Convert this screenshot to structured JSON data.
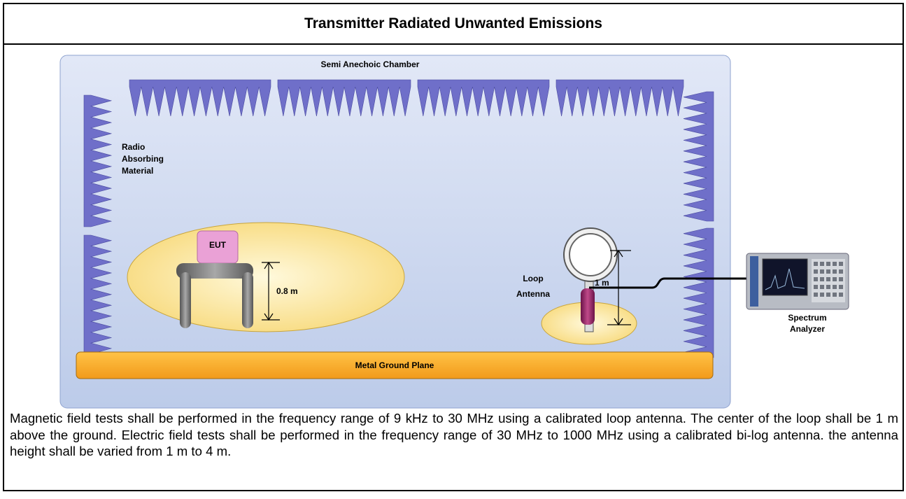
{
  "title": "Transmitter Radiated Unwanted Emissions",
  "diagram": {
    "chamber_label": "Semi Anechoic Chamber",
    "absorber_label": [
      "Radio",
      "Absorbing",
      "Material"
    ],
    "eut_label": "EUT",
    "eut_height": "0.8 m",
    "antenna_label": [
      "Loop",
      "Antenna"
    ],
    "antenna_height": "1 m",
    "analyzer_label": [
      "Spectrum",
      "Analyzer"
    ],
    "ground_label": "Metal Ground Plane"
  },
  "description": "Magnetic field tests shall be performed in the frequency range of 9 kHz to 30 MHz using a calibrated loop antenna. The center of the loop shall be 1 m above the ground. Electric field tests shall be performed in the frequency range of 30 MHz to 1000 MHz using a calibrated bi-log antenna. the antenna height shall be varied from 1 m to 4 m."
}
